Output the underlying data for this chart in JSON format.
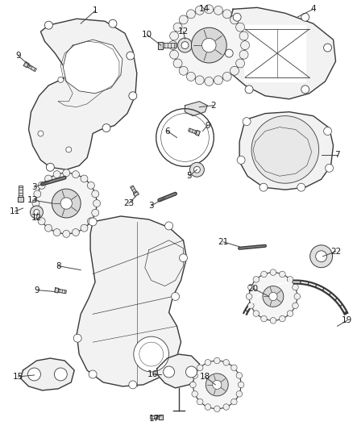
{
  "background_color": "#ffffff",
  "line_color": "#3a3a3a",
  "fig_width": 4.38,
  "fig_height": 5.33,
  "dpi": 100
}
